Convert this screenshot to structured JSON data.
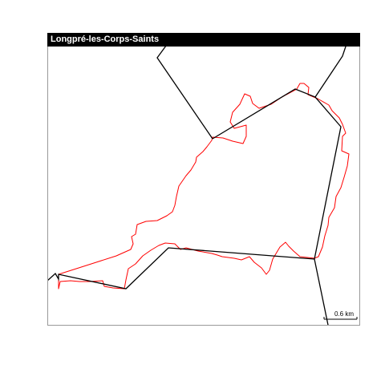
{
  "map": {
    "title": "Longpré-les-Corps-Saints",
    "scale_bar_label": "0.6 km",
    "colors": {
      "boundary_outline": "#ff0000",
      "road_lines": "#000000",
      "title_background": "#000000",
      "title_text": "#ffffff"
    }
  }
}
